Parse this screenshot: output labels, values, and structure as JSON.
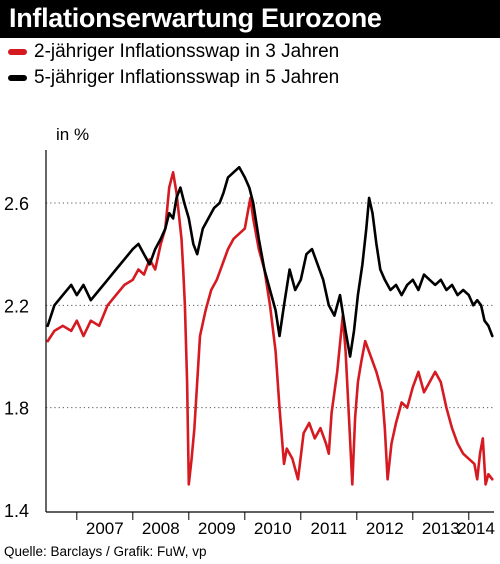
{
  "title": "Inflationserwartung Eurozone",
  "source": "Quelle: Barclays / Grafik: FuW, vp",
  "colors": {
    "title_bg": "#000000",
    "title_fg": "#ffffff",
    "series_red": "#d51b21",
    "series_black": "#000000"
  },
  "chart_data": {
    "type": "line",
    "title": "Inflationserwartung Eurozone",
    "ylabel": "in %",
    "xlabel": "",
    "ylim": [
      1.4,
      2.8
    ],
    "xlim": [
      2006.45,
      2014.45
    ],
    "yticks": [
      1.4,
      1.8,
      2.2,
      2.6
    ],
    "ytick_labels": [
      "1.4",
      "1.8",
      "2.2",
      "2.6"
    ],
    "xticks": [
      2007,
      2008,
      2009,
      2010,
      2011,
      2012,
      2013,
      2014
    ],
    "xtick_labels": [
      "2007",
      "2008",
      "2009",
      "2010",
      "2011",
      "2012",
      "2013",
      "2014"
    ],
    "grid": "horizontal dotted",
    "legend_position": "top-left",
    "series": [
      {
        "name": "2-jähriger Inflationsswap in 3 Jahren",
        "color": "#d51b21",
        "x": [
          2006.48,
          2006.6,
          2006.75,
          2006.9,
          2007.0,
          2007.12,
          2007.25,
          2007.4,
          2007.55,
          2007.7,
          2007.85,
          2008.0,
          2008.1,
          2008.2,
          2008.3,
          2008.4,
          2008.5,
          2008.58,
          2008.65,
          2008.72,
          2008.78,
          2008.83,
          2008.87,
          2008.9,
          2008.93,
          2008.97,
          2009.0,
          2009.05,
          2009.1,
          2009.15,
          2009.2,
          2009.3,
          2009.4,
          2009.5,
          2009.6,
          2009.7,
          2009.8,
          2009.9,
          2010.0,
          2010.05,
          2010.1,
          2010.15,
          2010.25,
          2010.35,
          2010.45,
          2010.55,
          2010.62,
          2010.7,
          2010.75,
          2010.85,
          2010.95,
          2011.05,
          2011.15,
          2011.25,
          2011.35,
          2011.45,
          2011.5,
          2011.55,
          2011.65,
          2011.75,
          2011.8,
          2011.87,
          2011.92,
          2011.97,
          2012.02,
          2012.08,
          2012.15,
          2012.25,
          2012.35,
          2012.45,
          2012.5,
          2012.55,
          2012.62,
          2012.7,
          2012.8,
          2012.9,
          2013.0,
          2013.1,
          2013.2,
          2013.3,
          2013.4,
          2013.5,
          2013.6,
          2013.7,
          2013.8,
          2013.9,
          2014.0,
          2014.1,
          2014.15,
          2014.2,
          2014.25,
          2014.3,
          2014.35,
          2014.42
        ],
        "y": [
          2.06,
          2.1,
          2.12,
          2.1,
          2.14,
          2.08,
          2.14,
          2.12,
          2.2,
          2.24,
          2.28,
          2.3,
          2.34,
          2.32,
          2.38,
          2.34,
          2.44,
          2.5,
          2.66,
          2.72,
          2.64,
          2.54,
          2.46,
          2.34,
          2.2,
          1.9,
          1.5,
          1.6,
          1.72,
          1.9,
          2.08,
          2.18,
          2.26,
          2.3,
          2.36,
          2.42,
          2.46,
          2.48,
          2.5,
          2.56,
          2.62,
          2.54,
          2.42,
          2.34,
          2.2,
          2.02,
          1.8,
          1.58,
          1.64,
          1.6,
          1.52,
          1.7,
          1.74,
          1.68,
          1.72,
          1.66,
          1.62,
          1.78,
          1.94,
          2.16,
          2.02,
          1.72,
          1.5,
          1.76,
          1.9,
          1.98,
          2.06,
          2.0,
          1.94,
          1.86,
          1.72,
          1.52,
          1.66,
          1.74,
          1.82,
          1.8,
          1.88,
          1.94,
          1.86,
          1.9,
          1.94,
          1.9,
          1.8,
          1.72,
          1.66,
          1.62,
          1.6,
          1.58,
          1.52,
          1.62,
          1.68,
          1.5,
          1.54,
          1.52
        ]
      },
      {
        "name": "5-jähriger Inflationsswap in 5 Jahren",
        "color": "#000000",
        "x": [
          2006.48,
          2006.6,
          2006.75,
          2006.9,
          2007.0,
          2007.12,
          2007.25,
          2007.4,
          2007.55,
          2007.7,
          2007.85,
          2008.0,
          2008.1,
          2008.2,
          2008.3,
          2008.4,
          2008.5,
          2008.58,
          2008.65,
          2008.72,
          2008.78,
          2008.85,
          2008.92,
          2009.0,
          2009.08,
          2009.15,
          2009.25,
          2009.35,
          2009.45,
          2009.55,
          2009.62,
          2009.7,
          2009.8,
          2009.9,
          2010.0,
          2010.08,
          2010.15,
          2010.25,
          2010.35,
          2010.45,
          2010.55,
          2010.62,
          2010.7,
          2010.8,
          2010.9,
          2011.0,
          2011.1,
          2011.2,
          2011.3,
          2011.4,
          2011.5,
          2011.6,
          2011.7,
          2011.8,
          2011.88,
          2011.95,
          2012.02,
          2012.1,
          2012.17,
          2012.22,
          2012.28,
          2012.35,
          2012.42,
          2012.5,
          2012.6,
          2012.7,
          2012.8,
          2012.9,
          2013.0,
          2013.1,
          2013.2,
          2013.3,
          2013.4,
          2013.5,
          2013.6,
          2013.7,
          2013.8,
          2013.9,
          2014.0,
          2014.08,
          2014.15,
          2014.22,
          2014.28,
          2014.35,
          2014.42
        ],
        "y": [
          2.12,
          2.2,
          2.24,
          2.28,
          2.24,
          2.28,
          2.22,
          2.26,
          2.3,
          2.34,
          2.38,
          2.42,
          2.44,
          2.4,
          2.36,
          2.42,
          2.46,
          2.5,
          2.56,
          2.54,
          2.62,
          2.66,
          2.6,
          2.54,
          2.44,
          2.4,
          2.5,
          2.54,
          2.58,
          2.6,
          2.64,
          2.7,
          2.72,
          2.74,
          2.7,
          2.66,
          2.6,
          2.46,
          2.34,
          2.26,
          2.18,
          2.08,
          2.2,
          2.34,
          2.26,
          2.3,
          2.4,
          2.42,
          2.36,
          2.3,
          2.2,
          2.16,
          2.24,
          2.1,
          2.0,
          2.1,
          2.24,
          2.36,
          2.5,
          2.62,
          2.56,
          2.44,
          2.34,
          2.3,
          2.26,
          2.28,
          2.24,
          2.28,
          2.3,
          2.26,
          2.32,
          2.3,
          2.28,
          2.3,
          2.26,
          2.28,
          2.24,
          2.26,
          2.24,
          2.2,
          2.22,
          2.2,
          2.14,
          2.12,
          2.08
        ]
      }
    ]
  }
}
